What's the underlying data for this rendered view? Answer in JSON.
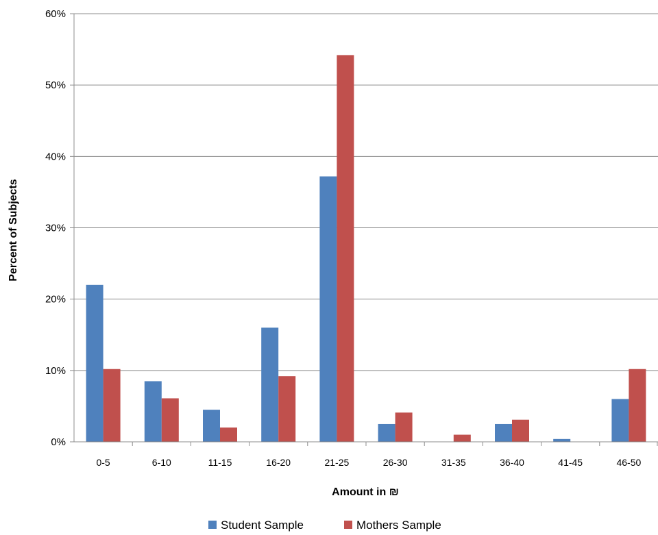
{
  "chart_data": {
    "type": "bar",
    "title": "",
    "xlabel": "Amount in ₪",
    "ylabel": "Percent of Subjects",
    "ylim": [
      0,
      60
    ],
    "yticks": [
      "0%",
      "10%",
      "20%",
      "30%",
      "40%",
      "50%",
      "60%"
    ],
    "grid": "horizontal",
    "legend_position": "bottom",
    "categories": [
      "0-5",
      "6-10",
      "11-15",
      "16-20",
      "21-25",
      "26-30",
      "31-35",
      "36-40",
      "41-45",
      "46-50"
    ],
    "series": [
      {
        "name": "Student Sample",
        "color": "#4f81bd",
        "values": [
          22,
          8.5,
          4.5,
          16,
          37.2,
          2.5,
          0,
          2.5,
          0.4,
          6
        ]
      },
      {
        "name": "Mothers Sample",
        "color": "#c0504d",
        "values": [
          10.2,
          6.1,
          2,
          9.2,
          54.2,
          4.1,
          1,
          3.1,
          0,
          10.2
        ]
      }
    ]
  }
}
